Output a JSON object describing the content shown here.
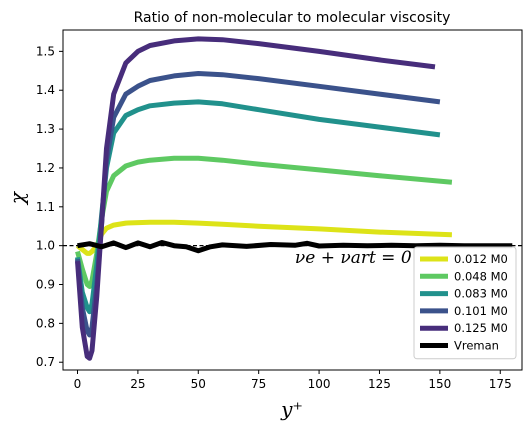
{
  "chart_data": {
    "type": "line",
    "title": "Ratio of non-molecular to molecular viscosity",
    "xlabel": "y⁺",
    "ylabel": "χ",
    "xlim": [
      -6,
      184
    ],
    "ylim": [
      0.68,
      1.555
    ],
    "xticks": [
      0,
      25,
      50,
      75,
      100,
      125,
      150,
      175
    ],
    "yticks": [
      0.7,
      0.8,
      0.9,
      1.0,
      1.1,
      1.2,
      1.3,
      1.4,
      1.5
    ],
    "ytick_labels": [
      "0.7",
      "0.8",
      "0.9",
      "1.0",
      "1.1",
      "1.2",
      "1.3",
      "1.4",
      "1.5"
    ],
    "reference_line": {
      "y": 1.0,
      "style": "dashed",
      "color": "#000000"
    },
    "annotation": {
      "text": "νe + νart = 0",
      "x": 90,
      "y": 0.955
    },
    "legend_position": "lower-right",
    "grid": false,
    "series": [
      {
        "name": "0.012 M0",
        "color": "#dde318",
        "x": [
          0,
          2,
          4,
          5,
          6,
          8,
          10,
          12,
          15,
          20,
          30,
          40,
          50,
          60,
          75,
          100,
          125,
          155
        ],
        "y": [
          1.0,
          0.99,
          0.98,
          0.98,
          0.985,
          1.0,
          1.03,
          1.045,
          1.053,
          1.058,
          1.06,
          1.06,
          1.058,
          1.055,
          1.05,
          1.043,
          1.035,
          1.028
        ]
      },
      {
        "name": "0.048 M0",
        "color": "#5ec962",
        "x": [
          0,
          2,
          4,
          5,
          6,
          8,
          10,
          12,
          15,
          20,
          25,
          30,
          40,
          50,
          60,
          75,
          100,
          125,
          155
        ],
        "y": [
          0.985,
          0.94,
          0.9,
          0.895,
          0.91,
          0.98,
          1.07,
          1.14,
          1.18,
          1.205,
          1.215,
          1.22,
          1.225,
          1.225,
          1.22,
          1.21,
          1.195,
          1.18,
          1.163
        ]
      },
      {
        "name": "0.083 M0",
        "color": "#21918c",
        "x": [
          0,
          2,
          4,
          5,
          6,
          8,
          10,
          12,
          15,
          20,
          25,
          30,
          40,
          50,
          60,
          75,
          100,
          125,
          150
        ],
        "y": [
          0.97,
          0.88,
          0.84,
          0.83,
          0.85,
          0.95,
          1.08,
          1.2,
          1.29,
          1.335,
          1.35,
          1.36,
          1.367,
          1.37,
          1.365,
          1.35,
          1.325,
          1.305,
          1.285
        ]
      },
      {
        "name": "0.101 M0",
        "color": "#3b528b",
        "x": [
          0,
          2,
          4,
          5,
          6,
          8,
          10,
          12,
          15,
          20,
          25,
          30,
          40,
          50,
          60,
          75,
          100,
          125,
          150
        ],
        "y": [
          0.965,
          0.84,
          0.78,
          0.77,
          0.79,
          0.9,
          1.06,
          1.22,
          1.33,
          1.39,
          1.41,
          1.425,
          1.437,
          1.443,
          1.44,
          1.43,
          1.41,
          1.39,
          1.37
        ]
      },
      {
        "name": "0.125 M0",
        "color": "#472d7b",
        "x": [
          0,
          2,
          4,
          5,
          6,
          8,
          10,
          12,
          15,
          20,
          25,
          30,
          40,
          50,
          60,
          75,
          100,
          125,
          148
        ],
        "y": [
          0.96,
          0.79,
          0.715,
          0.71,
          0.73,
          0.87,
          1.06,
          1.25,
          1.39,
          1.47,
          1.5,
          1.515,
          1.527,
          1.532,
          1.53,
          1.52,
          1.5,
          1.478,
          1.46
        ]
      },
      {
        "name": "Vreman",
        "color": "#000000",
        "x": [
          0,
          5,
          10,
          15,
          20,
          25,
          30,
          35,
          40,
          45,
          50,
          55,
          60,
          70,
          80,
          90,
          95,
          100,
          110,
          120,
          130,
          140,
          150,
          160,
          170,
          180
        ],
        "y": [
          1.0,
          1.005,
          0.997,
          1.007,
          0.995,
          1.007,
          0.997,
          1.008,
          1.0,
          0.997,
          0.987,
          0.997,
          1.002,
          0.998,
          1.003,
          1.001,
          1.006,
          0.999,
          1.001,
          1.0,
          1.001,
          1.0,
          1.001,
          1.0,
          1.0,
          1.0
        ]
      }
    ]
  }
}
